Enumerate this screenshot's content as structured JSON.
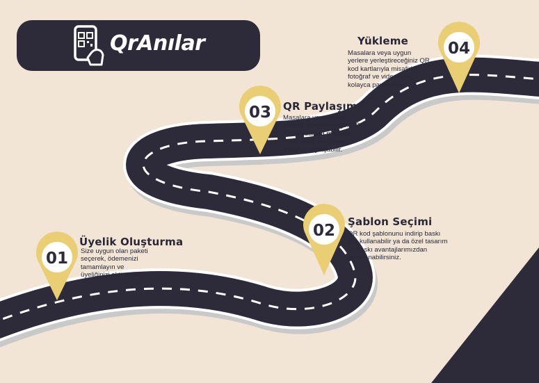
{
  "brand": {
    "name": "QrAnılar",
    "icon": "phone-qr-icon"
  },
  "colors": {
    "background": "#f3e5d6",
    "road": "#2d2b3a",
    "road_edge": "#ffffff",
    "pin": "#e9ce73",
    "dark_corner": "#2d2b3a"
  },
  "steps": [
    {
      "number": "01",
      "title": "Üyelik Oluşturma",
      "description": "Size uygun olan paketi seçerek, ödemenizi tamamlayın ve üyeliğinizi aktive edin.",
      "lines": [
        "Size uygun olan paketi",
        "seçerek, ödemenizi",
        "tamamlayın ve",
        "üyeliğinizi aktive edin."
      ]
    },
    {
      "number": "02",
      "title": "Şablon Seçimi",
      "description": "QR kod şablonunu indirip baskı için kullanabilir ya da özel tasarım ve baskı avantajlarımızdan yararlanabilirsiniz.",
      "lines": [
        "QR kod şablonunu indirip baskı",
        "için kullanabilir ya da özel tasarım",
        "ve baskı avantajlarımızdan",
        "yararlanabilirsiniz."
      ]
    },
    {
      "number": "03",
      "title": "QR Paylaşımı",
      "description": "Masalara veya uygun yerlere yerleştireceğiniz QR kod kartlarıyla misafirler fotoğraf ve videolarını kolayca paylaşabilir.",
      "lines": [
        "Masalara veya uygun",
        "yerlere yerleştireceğiniz QR",
        "kod kartlarıyla misafirler",
        "fotoğraf ve videolarını",
        "kolayca paylaşabilir."
      ]
    },
    {
      "number": "04",
      "title": "Yükleme",
      "description": "Masalara veya uygun yerlere yerleştireceğiniz QR kod kartlarıyla misafirler fotoğraf ve videolarını kolayca paylaşabilir.",
      "lines": [
        "Masalara veya uygun",
        "yerlere yerleştireceğiniz QR",
        "kod kartlarıyla misafirler",
        "fotoğraf ve videolarını",
        "kolayca paylaşabilir."
      ]
    }
  ]
}
